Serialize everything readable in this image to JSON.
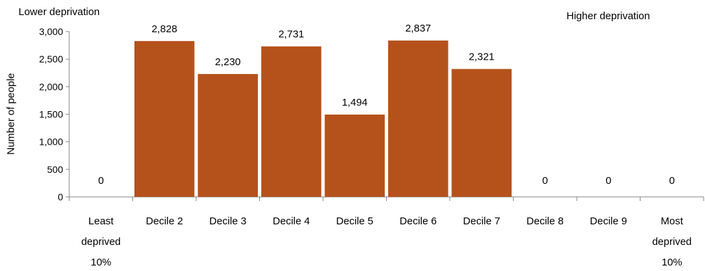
{
  "chart_data": {
    "type": "bar",
    "categories": [
      "Least deprived 10%",
      "Decile 2",
      "Decile 3",
      "Decile 4",
      "Decile 5",
      "Decile 6",
      "Decile 7",
      "Decile 8",
      "Decile 9",
      "Most deprived 10%"
    ],
    "category_lines": [
      [
        "Least",
        "deprived",
        "10%"
      ],
      [
        "Decile 2"
      ],
      [
        "Decile 3"
      ],
      [
        "Decile 4"
      ],
      [
        "Decile 5"
      ],
      [
        "Decile 6"
      ],
      [
        "Decile 7"
      ],
      [
        "Decile 8"
      ],
      [
        "Decile 9"
      ],
      [
        "Most",
        "deprived",
        "10%"
      ]
    ],
    "values": [
      0,
      2828,
      2230,
      2731,
      1494,
      2837,
      2321,
      0,
      0,
      0
    ],
    "data_labels": [
      "0",
      "2,828",
      "2,230",
      "2,731",
      "1,494",
      "2,837",
      "2,321",
      "0",
      "0",
      "0"
    ],
    "ylabel": "Number of people",
    "xlabel": "",
    "ylim": [
      0,
      3000
    ],
    "yticks": [
      0,
      500,
      1000,
      1500,
      2000,
      2500,
      3000
    ],
    "ytick_labels": [
      "0",
      "500",
      "1,000",
      "1,500",
      "2,000",
      "2,500",
      "3,000"
    ],
    "annotations": {
      "left": "Lower deprivation",
      "right": "Higher deprivation"
    },
    "bar_color": "#b5521b",
    "grid": false,
    "legend": "none"
  }
}
